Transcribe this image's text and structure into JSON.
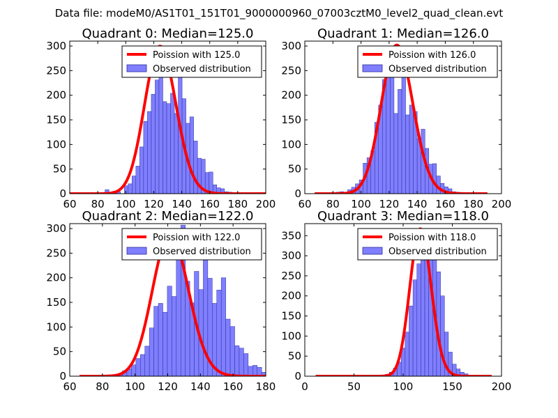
{
  "suptitle": "Data file: modeM0/AS1T01_151T01_9000000960_07003cztM0_level2_quad_clean.evt",
  "colors": {
    "curve": "#ff0000",
    "bar_fill": "#7f7fff",
    "bar_edge": "#2c2c9c",
    "axis": "#000000"
  },
  "chart_data": [
    {
      "type": "bar",
      "title": "Quadrant 0: Median=125.0",
      "xlim": [
        60,
        200
      ],
      "ylim": [
        0,
        310
      ],
      "xticks": [
        60,
        80,
        100,
        120,
        140,
        160,
        180,
        200
      ],
      "yticks": [
        0,
        50,
        100,
        150,
        200,
        250,
        300
      ],
      "legend": {
        "placement": "top-right",
        "curve_label": "Poission with 125.0",
        "bar_label": "Observed distribution"
      },
      "hist": {
        "start": 77,
        "width": 2.75,
        "values": [
          1,
          2,
          0,
          8,
          2,
          5,
          4,
          0,
          16,
          20,
          36,
          56,
          95,
          147,
          167,
          202,
          231,
          292,
          187,
          183,
          204,
          163,
          238,
          193,
          143,
          156,
          107,
          72,
          70,
          43,
          44,
          18,
          12,
          10,
          4,
          3,
          2,
          1,
          1,
          0,
          1
        ]
      },
      "curve": {
        "mean": 125.0,
        "range": [
          60,
          200
        ],
        "scale": 8400
      }
    },
    {
      "type": "bar",
      "title": "Quadrant 1: Median=126.0",
      "xlim": [
        60,
        200
      ],
      "ylim": [
        0,
        310
      ],
      "xticks": [
        60,
        80,
        100,
        120,
        140,
        160,
        180,
        200
      ],
      "yticks": [
        0,
        50,
        100,
        150,
        200,
        250,
        300
      ],
      "legend": {
        "placement": "top-right",
        "curve_label": "Poission with 126.0",
        "bar_label": "Observed distribution"
      },
      "hist": {
        "start": 74,
        "width": 2.75,
        "values": [
          0,
          1,
          0,
          3,
          4,
          2,
          8,
          13,
          20,
          28,
          62,
          73,
          87,
          145,
          180,
          232,
          285,
          283,
          163,
          212,
          295,
          160,
          180,
          167,
          112,
          131,
          92,
          60,
          61,
          36,
          21,
          14,
          10,
          4,
          3,
          2,
          1,
          1,
          0,
          1,
          1,
          0
        ]
      },
      "curve": {
        "mean": 126.0,
        "range": [
          67,
          190
        ],
        "scale": 8500
      }
    },
    {
      "type": "bar",
      "title": "Quadrant 2: Median=122.0",
      "xlim": [
        60,
        180
      ],
      "ylim": [
        0,
        310
      ],
      "xticks": [
        60,
        80,
        100,
        120,
        140,
        160,
        180
      ],
      "yticks": [
        0,
        50,
        100,
        150,
        200,
        250,
        300
      ],
      "legend": {
        "placement": "top-right",
        "curve_label": "Poission with 122.0",
        "bar_label": "Observed distribution"
      },
      "hist": {
        "start": 84,
        "width": 2.75,
        "values": [
          3,
          2,
          4,
          11,
          15,
          23,
          36,
          44,
          61,
          98,
          142,
          148,
          130,
          183,
          162,
          261,
          307,
          193,
          149,
          213,
          176,
          253,
          199,
          148,
          175,
          200,
          116,
          101,
          62,
          57,
          46,
          20,
          22,
          18,
          8,
          12,
          6,
          4,
          3,
          1,
          1
        ]
      },
      "curve": {
        "mean": 122.0,
        "range": [
          66,
          180
        ],
        "scale": 8000
      }
    },
    {
      "type": "bar",
      "title": "Quadrant 3: Median=118.0",
      "xlim": [
        0,
        200
      ],
      "ylim": [
        0,
        380
      ],
      "xticks": [
        0,
        50,
        100,
        150,
        200
      ],
      "yticks": [
        0,
        50,
        100,
        150,
        200,
        250,
        300,
        350
      ],
      "legend": {
        "placement": "top-right",
        "curve_label": "Poission with 118.0",
        "bar_label": "Observed distribution"
      },
      "hist": {
        "start": 78,
        "width": 4,
        "values": [
          3,
          5,
          10,
          20,
          35,
          70,
          110,
          175,
          240,
          280,
          300,
          360,
          350,
          320,
          260,
          200,
          110,
          60,
          30,
          18,
          10,
          6,
          3,
          2
        ]
      },
      "curve": {
        "mean": 118.0,
        "range": [
          11,
          190
        ],
        "scale": 10000
      }
    }
  ]
}
